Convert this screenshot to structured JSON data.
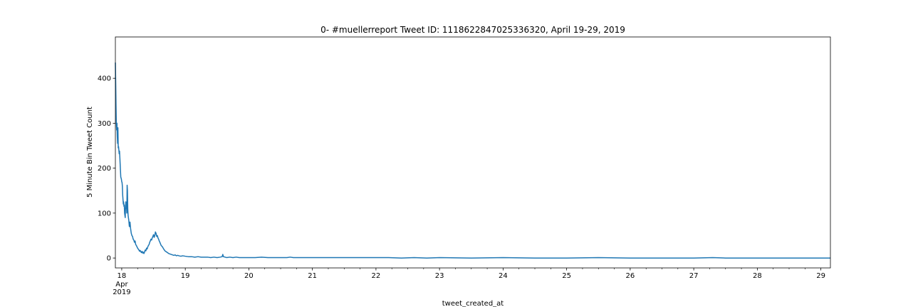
{
  "chart_data": {
    "type": "line",
    "title": "0- #muellerreport Tweet ID: 1118622847025336320, April 19-29, 2019",
    "xlabel": "tweet_created_at",
    "ylabel": "5 Minute Bin Tweet Count",
    "x_tick_labels": [
      "18",
      "19",
      "20",
      "21",
      "22",
      "23",
      "24",
      "25",
      "26",
      "27",
      "28",
      "29"
    ],
    "x_tick_values": [
      18,
      19,
      20,
      21,
      22,
      23,
      24,
      25,
      26,
      27,
      28,
      29
    ],
    "x_secondary_labels": [
      "Apr",
      "2019"
    ],
    "y_tick_values": [
      0,
      100,
      200,
      300,
      400
    ],
    "xlim": [
      17.9,
      29.15
    ],
    "ylim": [
      -22,
      492
    ],
    "grid": false,
    "legend": "none",
    "series": [
      {
        "color": "#1f77b4",
        "points": [
          [
            17.9,
            435
          ],
          [
            17.905,
            390
          ],
          [
            17.91,
            340
          ],
          [
            17.915,
            300
          ],
          [
            17.92,
            285
          ],
          [
            17.925,
            300
          ],
          [
            17.93,
            270
          ],
          [
            17.935,
            255
          ],
          [
            17.94,
            290
          ],
          [
            17.945,
            245
          ],
          [
            17.95,
            248
          ],
          [
            17.955,
            240
          ],
          [
            17.96,
            232
          ],
          [
            17.965,
            238
          ],
          [
            17.97,
            225
          ],
          [
            17.975,
            210
          ],
          [
            17.98,
            195
          ],
          [
            17.985,
            180
          ],
          [
            17.99,
            178
          ],
          [
            17.995,
            175
          ],
          [
            18.0,
            170
          ],
          [
            18.005,
            168
          ],
          [
            18.01,
            160
          ],
          [
            18.015,
            140
          ],
          [
            18.02,
            130
          ],
          [
            18.025,
            120
          ],
          [
            18.03,
            125
          ],
          [
            18.035,
            115
          ],
          [
            18.04,
            118
          ],
          [
            18.045,
            100
          ],
          [
            18.05,
            95
          ],
          [
            18.055,
            90
          ],
          [
            18.06,
            115
          ],
          [
            18.065,
            125
          ],
          [
            18.07,
            110
          ],
          [
            18.075,
            120
          ],
          [
            18.08,
            100
          ],
          [
            18.085,
            162
          ],
          [
            18.09,
            150
          ],
          [
            18.095,
            110
          ],
          [
            18.1,
            95
          ],
          [
            18.11,
            85
          ],
          [
            18.12,
            70
          ],
          [
            18.13,
            80
          ],
          [
            18.14,
            65
          ],
          [
            18.15,
            55
          ],
          [
            18.16,
            50
          ],
          [
            18.17,
            48
          ],
          [
            18.18,
            42
          ],
          [
            18.19,
            40
          ],
          [
            18.2,
            35
          ],
          [
            18.21,
            38
          ],
          [
            18.22,
            30
          ],
          [
            18.23,
            28
          ],
          [
            18.24,
            25
          ],
          [
            18.25,
            22
          ],
          [
            18.26,
            20
          ],
          [
            18.27,
            18
          ],
          [
            18.28,
            15
          ],
          [
            18.29,
            17
          ],
          [
            18.3,
            14
          ],
          [
            18.31,
            12
          ],
          [
            18.32,
            15
          ],
          [
            18.33,
            11
          ],
          [
            18.34,
            13
          ],
          [
            18.35,
            10
          ],
          [
            18.36,
            14
          ],
          [
            18.37,
            18
          ],
          [
            18.38,
            16
          ],
          [
            18.39,
            22
          ],
          [
            18.4,
            20
          ],
          [
            18.41,
            25
          ],
          [
            18.42,
            28
          ],
          [
            18.43,
            30
          ],
          [
            18.44,
            35
          ],
          [
            18.45,
            38
          ],
          [
            18.46,
            42
          ],
          [
            18.47,
            40
          ],
          [
            18.48,
            45
          ],
          [
            18.49,
            48
          ],
          [
            18.5,
            52
          ],
          [
            18.51,
            46
          ],
          [
            18.52,
            50
          ],
          [
            18.53,
            58
          ],
          [
            18.54,
            55
          ],
          [
            18.55,
            48
          ],
          [
            18.56,
            50
          ],
          [
            18.57,
            45
          ],
          [
            18.58,
            42
          ],
          [
            18.59,
            38
          ],
          [
            18.6,
            35
          ],
          [
            18.62,
            28
          ],
          [
            18.64,
            25
          ],
          [
            18.66,
            20
          ],
          [
            18.68,
            16
          ],
          [
            18.7,
            14
          ],
          [
            18.72,
            12
          ],
          [
            18.74,
            10
          ],
          [
            18.76,
            9
          ],
          [
            18.78,
            8
          ],
          [
            18.8,
            7
          ],
          [
            18.82,
            6
          ],
          [
            18.84,
            7
          ],
          [
            18.86,
            5
          ],
          [
            18.88,
            6
          ],
          [
            18.9,
            5
          ],
          [
            18.93,
            4
          ],
          [
            18.96,
            5
          ],
          [
            19.0,
            4
          ],
          [
            19.05,
            3
          ],
          [
            19.1,
            3
          ],
          [
            19.15,
            2
          ],
          [
            19.2,
            3
          ],
          [
            19.25,
            2
          ],
          [
            19.3,
            2
          ],
          [
            19.35,
            2
          ],
          [
            19.4,
            1
          ],
          [
            19.45,
            2
          ],
          [
            19.5,
            1
          ],
          [
            19.55,
            2
          ],
          [
            19.58,
            3
          ],
          [
            19.59,
            8
          ],
          [
            19.6,
            3
          ],
          [
            19.65,
            1
          ],
          [
            19.7,
            2
          ],
          [
            19.75,
            1
          ],
          [
            19.8,
            2
          ],
          [
            19.85,
            1
          ],
          [
            19.9,
            1
          ],
          [
            20.0,
            1
          ],
          [
            20.1,
            1
          ],
          [
            20.2,
            2
          ],
          [
            20.3,
            1
          ],
          [
            20.4,
            1
          ],
          [
            20.5,
            1
          ],
          [
            20.6,
            1
          ],
          [
            20.65,
            2
          ],
          [
            20.7,
            1
          ],
          [
            20.8,
            1
          ],
          [
            21.0,
            1
          ],
          [
            21.2,
            1
          ],
          [
            21.4,
            1
          ],
          [
            21.6,
            1
          ],
          [
            21.8,
            1
          ],
          [
            22.0,
            1
          ],
          [
            22.2,
            1
          ],
          [
            22.4,
            0
          ],
          [
            22.6,
            1
          ],
          [
            22.8,
            0
          ],
          [
            23.0,
            1
          ],
          [
            23.5,
            0
          ],
          [
            24.0,
            1
          ],
          [
            24.5,
            0
          ],
          [
            25.0,
            0
          ],
          [
            25.5,
            1
          ],
          [
            26.0,
            0
          ],
          [
            26.5,
            0
          ],
          [
            27.0,
            0
          ],
          [
            27.3,
            1
          ],
          [
            27.5,
            0
          ],
          [
            28.0,
            0
          ],
          [
            28.5,
            0
          ],
          [
            29.0,
            0
          ],
          [
            29.15,
            0
          ]
        ]
      }
    ]
  }
}
